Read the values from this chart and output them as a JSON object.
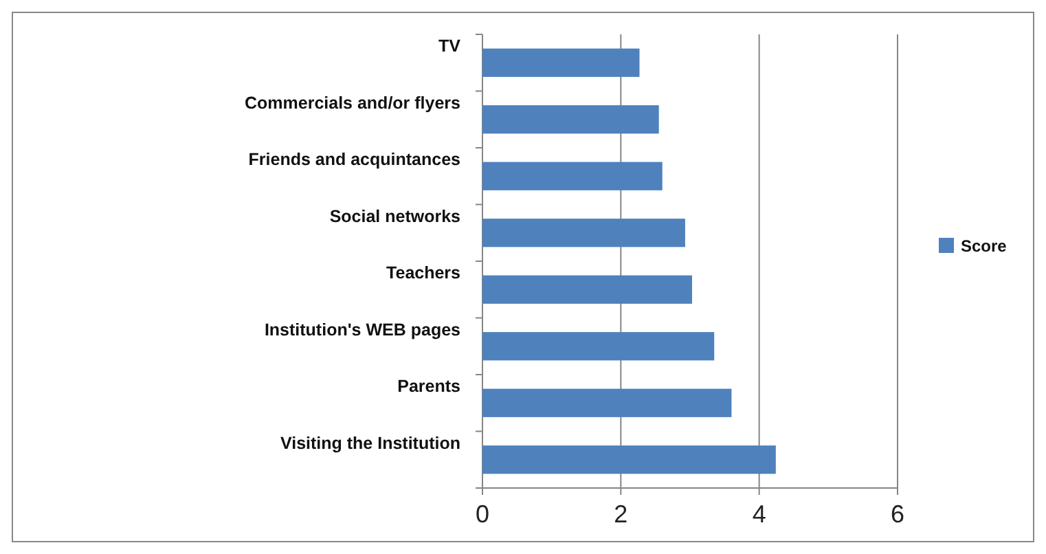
{
  "chart_data": {
    "type": "bar",
    "orientation": "horizontal",
    "categories": [
      "TV",
      "Commercials and/or flyers",
      "Friends and acquintances",
      "Social networks",
      "Teachers",
      "Institution's WEB pages",
      "Parents",
      "Visiting the Institution"
    ],
    "series": [
      {
        "name": "Score",
        "color": "#4f81bd",
        "values": [
          2.27,
          2.55,
          2.6,
          2.93,
          3.03,
          3.35,
          3.6,
          4.24
        ]
      }
    ],
    "xlim": [
      0,
      6
    ],
    "xticks": [
      0,
      2,
      4,
      6
    ],
    "grid": "x",
    "legend": "right"
  }
}
